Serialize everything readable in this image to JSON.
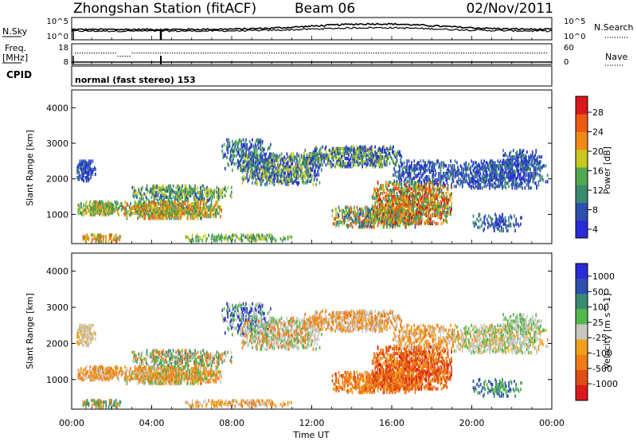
{
  "header": {
    "station": "Zhongshan Station (fitACF)",
    "beam": "Beam 06",
    "date": "02/Nov/2011"
  },
  "strip_noise": {
    "left_label": "N.Sky",
    "right_label": "N.Search",
    "left_ticks": [
      "10^5",
      "10^0"
    ],
    "right_ticks": [
      "10^5",
      "10^0"
    ]
  },
  "strip_freq": {
    "left_label_1": "Freq.",
    "left_label_2": "[MHz]",
    "right_label": "Nave",
    "left_ticks": [
      "18",
      "8"
    ],
    "right_ticks": [
      "60",
      "0"
    ]
  },
  "cpid": {
    "label": "CPID",
    "mode_text": "normal (fast stereo) 153"
  },
  "chart_data": [
    {
      "type": "heatmap",
      "name": "Power",
      "ylabel": "Slant Range [km]",
      "yticks": [
        "4000",
        "3000",
        "2000",
        "1000"
      ],
      "yrange_km": [
        180,
        4500
      ],
      "colorbar_label": "Power [dB]",
      "colorbar_ticks": [
        "28",
        "24",
        "20",
        "16",
        "12",
        "8",
        "4"
      ],
      "colors": [
        "#2a2ad8",
        "#2d4fb0",
        "#3a8a73",
        "#52a94d",
        "#c8c81e",
        "#f08a14",
        "#ee5a12",
        "#d8181c"
      ]
    },
    {
      "type": "heatmap",
      "name": "Velocity",
      "ylabel": "Slant Range [km]",
      "yticks": [
        "4000",
        "3000",
        "2000",
        "1000"
      ],
      "yrange_km": [
        180,
        4500
      ],
      "xlabel": "Time UT",
      "xticks": [
        "00:00",
        "04:00",
        "08:00",
        "12:00",
        "16:00",
        "20:00",
        "00:00"
      ],
      "colorbar_label": "Velocity [m s^-1]",
      "colorbar_ticks": [
        "1000",
        "500",
        "100",
        "25",
        "-25",
        "-100",
        "-500",
        "-1000"
      ],
      "colors": [
        "#2a2ad8",
        "#2d4fb0",
        "#3a8a73",
        "#52b84b",
        "#c8c8c0",
        "#f0a01c",
        "#f07c18",
        "#e04e14",
        "#d81a1c"
      ]
    }
  ]
}
